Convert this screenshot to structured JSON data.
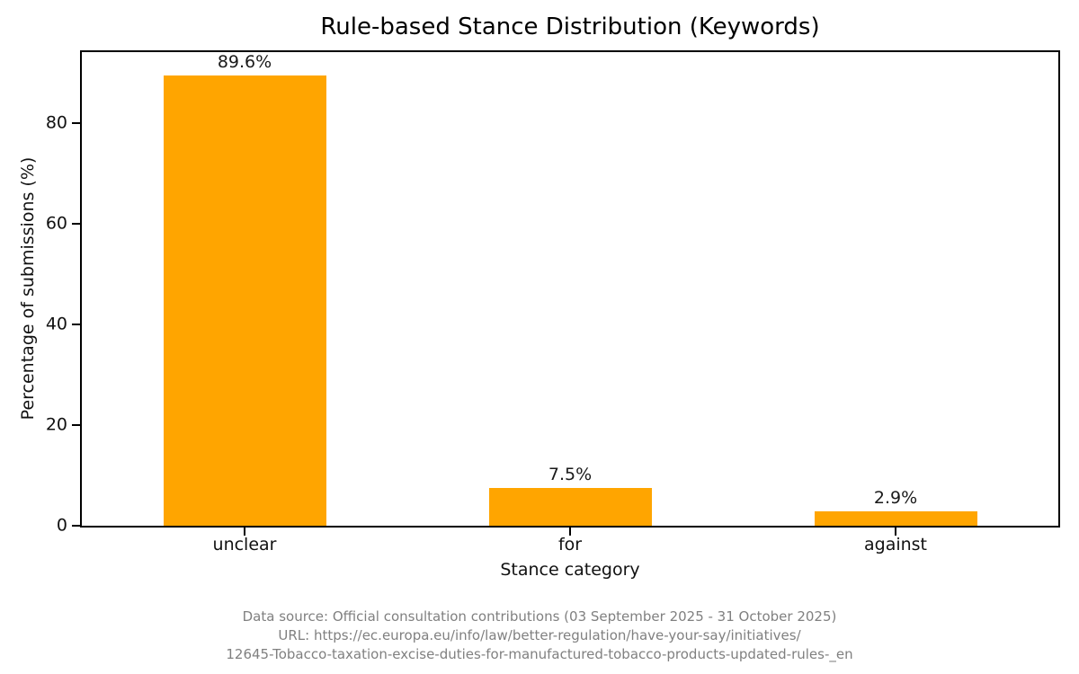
{
  "chart_data": {
    "type": "bar",
    "title": "Rule-based Stance Distribution (Keywords)",
    "categories": [
      "unclear",
      "for",
      "against"
    ],
    "values": [
      89.6,
      7.5,
      2.9
    ],
    "value_labels": [
      "89.6%",
      "7.5%",
      "2.9%"
    ],
    "xlabel": "Stance category",
    "ylabel": "Percentage of submissions (%)",
    "ylim": [
      0,
      94.2
    ],
    "yticks": [
      0,
      20,
      40,
      60,
      80
    ],
    "bar_color": "#FFA500",
    "grid": "off",
    "legend": "none"
  },
  "footer": {
    "lines": [
      "Data source: Official consultation contributions (03 September 2025 - 31 October 2025)",
      "URL: https://ec.europa.eu/info/law/better-regulation/have-your-say/initiatives/",
      "12645-Tobacco-taxation-excise-duties-for-manufactured-tobacco-products-updated-rules-_en"
    ]
  }
}
